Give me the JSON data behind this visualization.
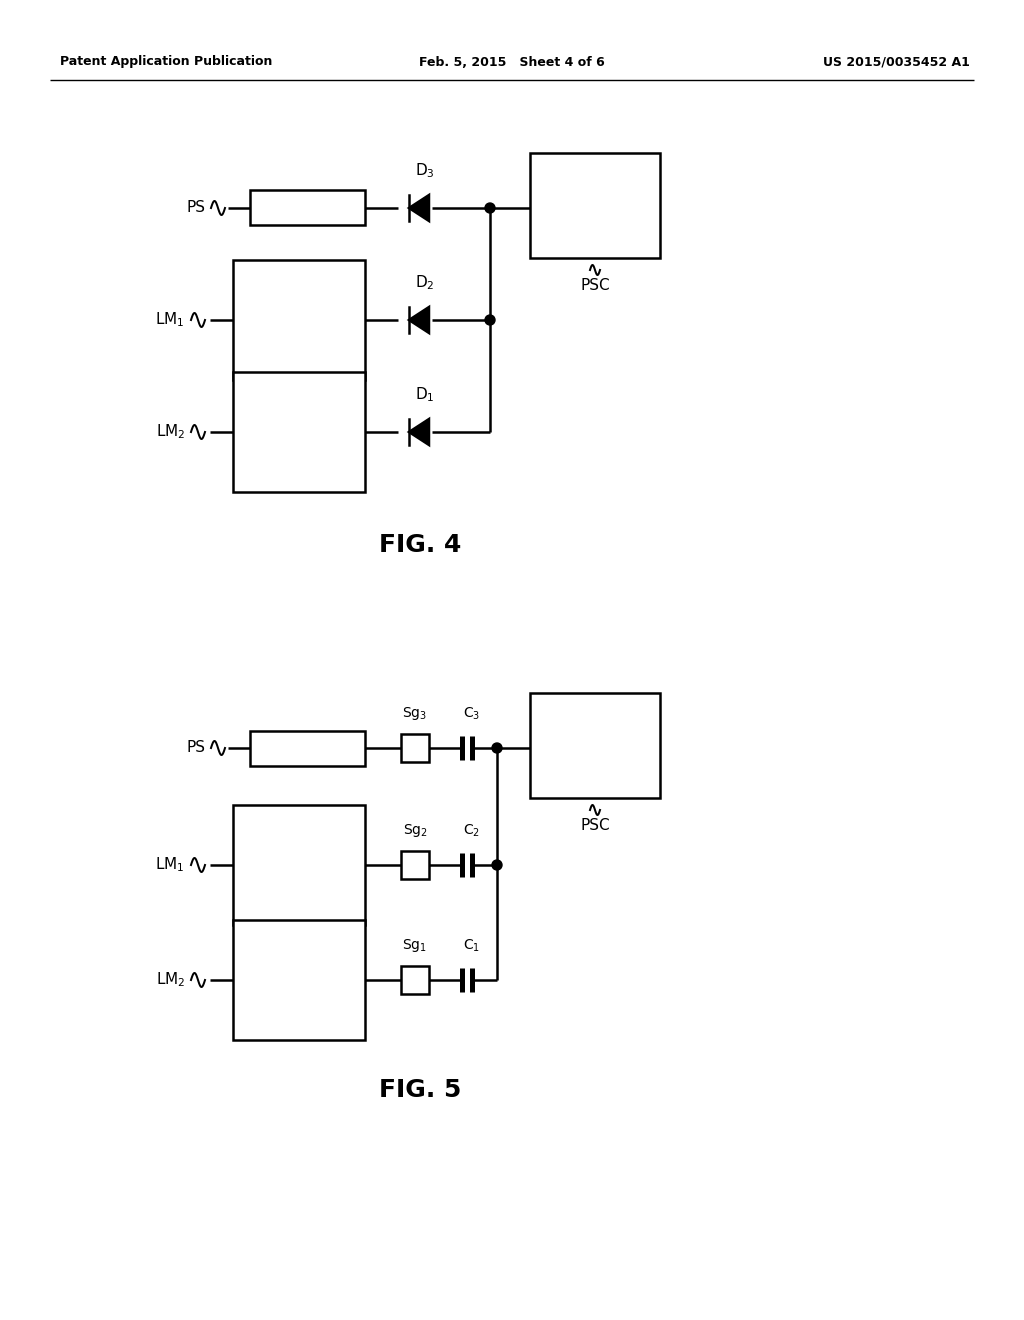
{
  "bg_color": "#ffffff",
  "line_color": "#000000",
  "header_left": "Patent Application Publication",
  "header_center": "Feb. 5, 2015   Sheet 4 of 6",
  "header_right": "US 2015/0035452 A1",
  "fig4_label": "FIG. 4",
  "fig5_label": "FIG. 5",
  "lw": 1.8
}
